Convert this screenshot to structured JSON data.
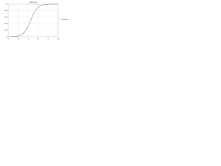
{
  "chart_data": {
    "type": "line",
    "title": "Sigmoid",
    "x": [
      0,
      0.5,
      1,
      1.5,
      2,
      2.5,
      3,
      3.5,
      4,
      4.5,
      5,
      5.5,
      6,
      6.5,
      7,
      7.5,
      8,
      8.5,
      9,
      9.5,
      10
    ],
    "series": [
      {
        "name": "Series",
        "color": "#999999",
        "values": [
          0,
          0,
          0.01,
          0.01,
          0.02,
          0.05,
          0.1,
          0.18,
          0.32,
          0.5,
          0.68,
          0.82,
          0.9,
          0.95,
          0.98,
          0.99,
          1,
          1,
          1,
          1,
          1
        ]
      }
    ],
    "xlim": [
      0,
      10
    ],
    "xticks": [
      0,
      2,
      4,
      6,
      8,
      10
    ],
    "ylim": [
      0,
      1
    ],
    "yticks": [
      0,
      0.2,
      0.4,
      0.6,
      0.8,
      1
    ],
    "grid": true,
    "legend": "right"
  }
}
